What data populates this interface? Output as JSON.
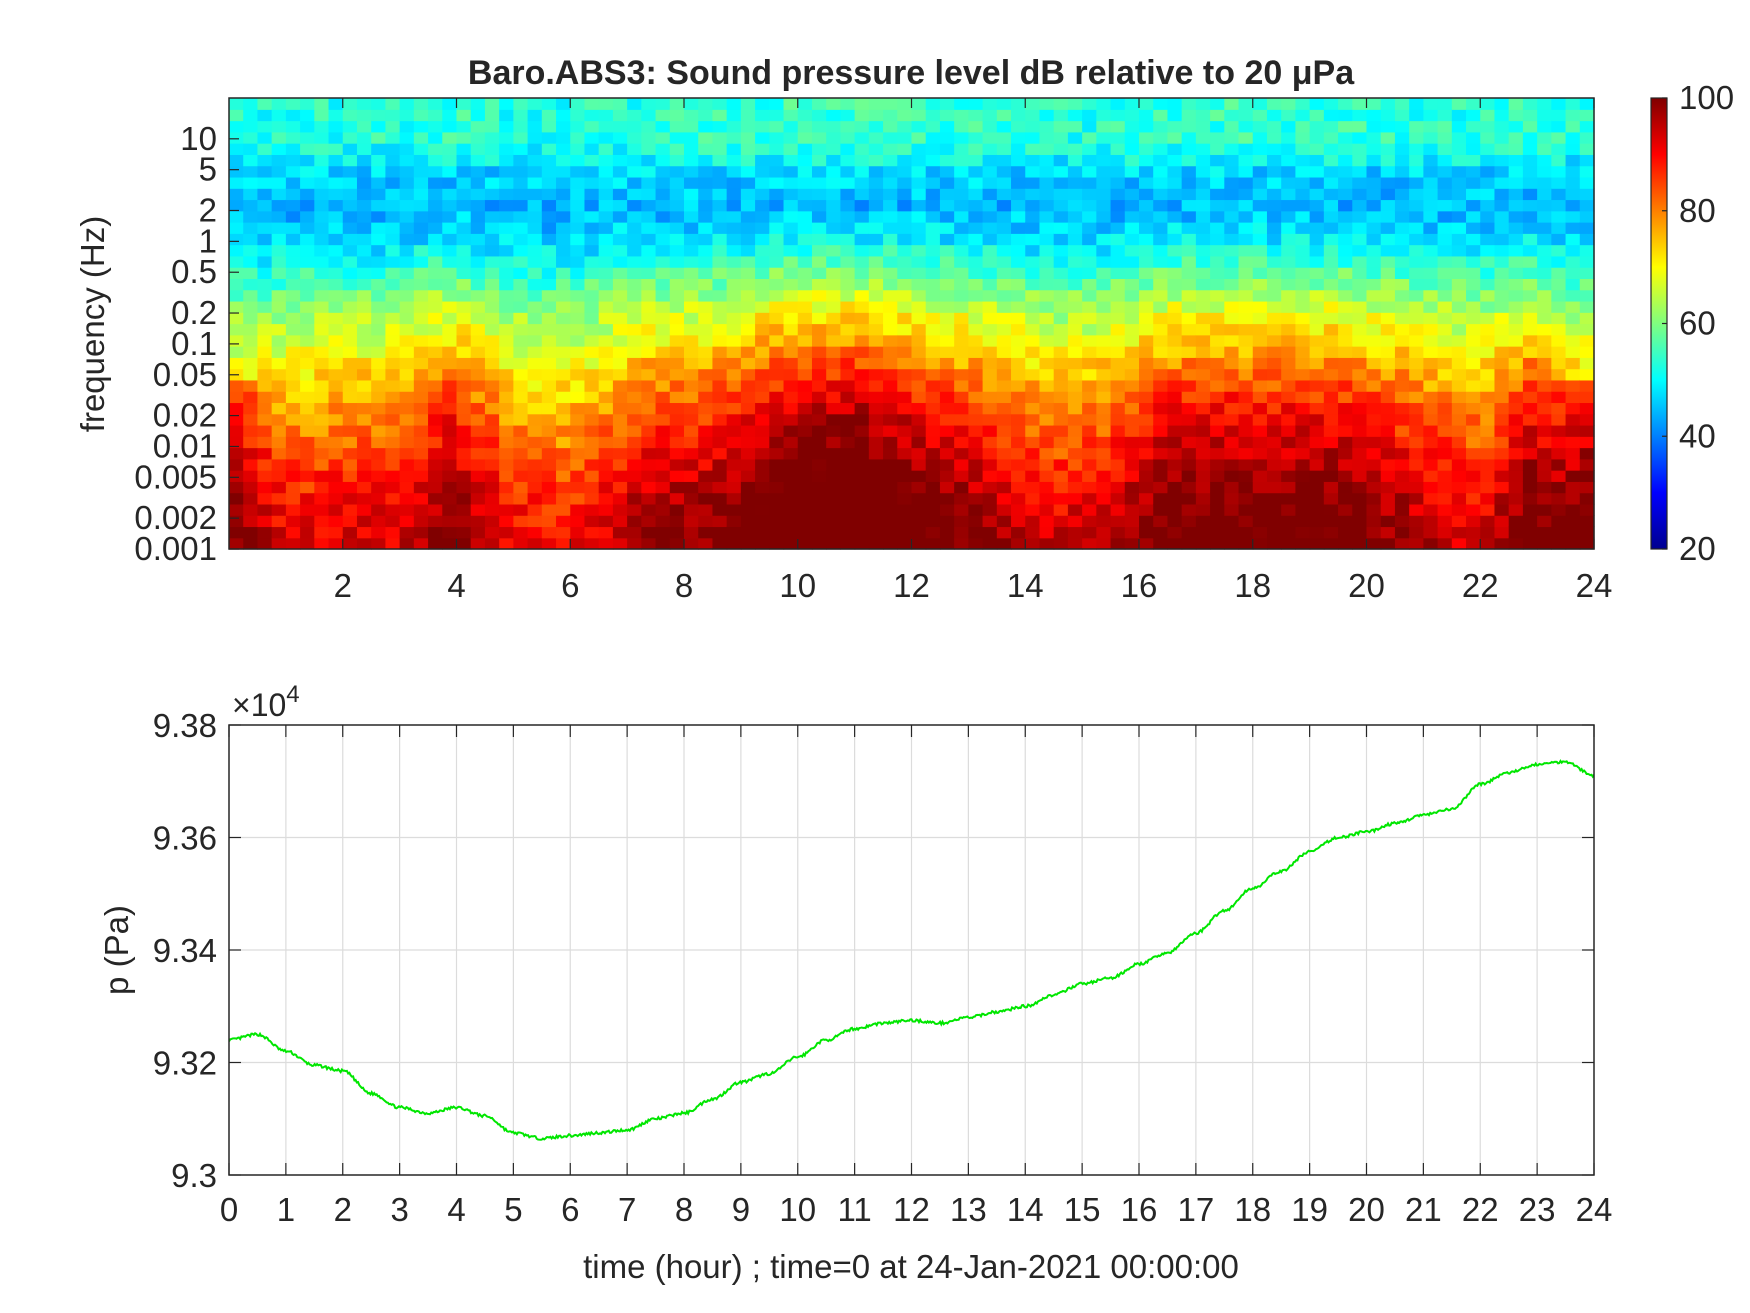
{
  "colors": {
    "pressure_line": "#00e600",
    "axis": "#262626",
    "grid": "#dcdcdc",
    "colormap": "jet"
  },
  "chart_data": [
    {
      "type": "heatmap",
      "title": "Baro.ABS3: Sound pressure level dB relative to 20 μPa",
      "xlabel": "",
      "ylabel": "frequency (Hz)",
      "x_scale": "linear",
      "y_scale": "log",
      "xlim": [
        0,
        24
      ],
      "ylim": [
        0.001,
        25
      ],
      "xticks": [
        2,
        4,
        6,
        8,
        10,
        12,
        14,
        16,
        18,
        20,
        22,
        24
      ],
      "yticks": [
        0.001,
        0.002,
        0.005,
        0.01,
        0.02,
        0.05,
        0.1,
        0.2,
        0.5,
        1,
        2,
        5,
        10
      ],
      "ytick_labels": [
        "0.001",
        "0.002",
        "0.005",
        "0.01",
        "0.02",
        "0.05",
        "0.1",
        "0.2",
        "0.5",
        "1",
        "2",
        "5",
        "10"
      ],
      "colorbar": {
        "range": [
          20,
          100
        ],
        "ticks": [
          20,
          40,
          60,
          80,
          100
        ],
        "placement": "right"
      },
      "band_levels_db": [
        {
          "freq": 0.001,
          "level": 88
        },
        {
          "freq": 0.002,
          "level": 86
        },
        {
          "freq": 0.005,
          "level": 82
        },
        {
          "freq": 0.01,
          "level": 78
        },
        {
          "freq": 0.02,
          "level": 74
        },
        {
          "freq": 0.05,
          "level": 69
        },
        {
          "freq": 0.1,
          "level": 64
        },
        {
          "freq": 0.2,
          "level": 60
        },
        {
          "freq": 0.5,
          "level": 52
        },
        {
          "freq": 1,
          "level": 46
        },
        {
          "freq": 2,
          "level": 44
        },
        {
          "freq": 5,
          "level": 47
        },
        {
          "freq": 10,
          "level": 52
        },
        {
          "freq": 20,
          "level": 52
        }
      ],
      "activity_by_hour_db": [
        {
          "hour": 0,
          "boost": 2
        },
        {
          "hour": 1,
          "boost": 4
        },
        {
          "hour": 2,
          "boost": 6
        },
        {
          "hour": 3,
          "boost": 6
        },
        {
          "hour": 3.9,
          "boost": 16
        },
        {
          "hour": 5,
          "boost": 4
        },
        {
          "hour": 6,
          "boost": 2
        },
        {
          "hour": 7.3,
          "boost": 12
        },
        {
          "hour": 8.5,
          "boost": 14
        },
        {
          "hour": 9.7,
          "boost": 22
        },
        {
          "hour": 11,
          "boost": 26
        },
        {
          "hour": 12.3,
          "boost": 18
        },
        {
          "hour": 13.5,
          "boost": 12
        },
        {
          "hour": 14.5,
          "boost": 6
        },
        {
          "hour": 15.3,
          "boost": 8
        },
        {
          "hour": 16.5,
          "boost": 18
        },
        {
          "hour": 18,
          "boost": 18
        },
        {
          "hour": 19.6,
          "boost": 18
        },
        {
          "hour": 21,
          "boost": 10
        },
        {
          "hour": 22,
          "boost": 6
        },
        {
          "hour": 22.9,
          "boost": 18
        },
        {
          "hour": 23.5,
          "boost": 8
        },
        {
          "hour": 24,
          "boost": 4
        }
      ]
    },
    {
      "type": "line",
      "title": "",
      "xlabel": "time (hour) ; time=0 at 24-Jan-2021 00:00:00",
      "ylabel": "p (Pa)",
      "xlim": [
        0,
        24
      ],
      "ylim": [
        93000,
        93800
      ],
      "xticks": [
        0,
        1,
        2,
        3,
        4,
        5,
        6,
        7,
        8,
        9,
        10,
        11,
        12,
        13,
        14,
        15,
        16,
        17,
        18,
        19,
        20,
        21,
        22,
        23,
        24
      ],
      "yticks": [
        93000,
        93200,
        93400,
        93600,
        93800
      ],
      "ytick_labels": [
        "9.3",
        "9.32",
        "9.34",
        "9.36",
        "9.38"
      ],
      "y_multiplier": {
        "base": "×10",
        "exponent": "4"
      },
      "grid": true,
      "series": [
        {
          "x": [
            0,
            0.5,
            1,
            1.5,
            2,
            2.5,
            3,
            3.5,
            4,
            4.5,
            5,
            5.5,
            6,
            6.5,
            7,
            7.5,
            8,
            8.5,
            9,
            9.5,
            10,
            10.5,
            11,
            11.5,
            12,
            12.5,
            13,
            13.5,
            14,
            14.5,
            15,
            15.5,
            16,
            16.5,
            17,
            17.5,
            18,
            18.5,
            19,
            19.5,
            20,
            20.5,
            21,
            21.5,
            22,
            22.5,
            23,
            23.5,
            24
          ],
          "y": [
            93240,
            93250,
            93220,
            93195,
            93185,
            93145,
            93120,
            93110,
            93120,
            93105,
            93075,
            93065,
            93070,
            93075,
            93080,
            93100,
            93110,
            93135,
            93165,
            93180,
            93210,
            93240,
            93260,
            93270,
            93275,
            93270,
            93280,
            93290,
            93300,
            93320,
            93340,
            93350,
            93375,
            93395,
            93430,
            93470,
            93510,
            93540,
            93575,
            93600,
            93610,
            93625,
            93640,
            93650,
            93695,
            93715,
            93730,
            93735,
            93710
          ]
        }
      ]
    }
  ]
}
